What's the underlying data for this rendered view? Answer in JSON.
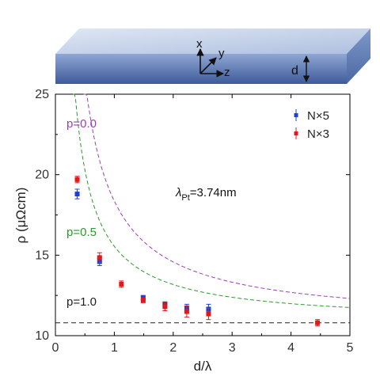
{
  "slab": {
    "x_label": "x",
    "y_label": "y",
    "z_label": "z",
    "d_label": "d"
  },
  "chart_data": {
    "type": "scatter",
    "xlabel": "d/λ",
    "ylabel": "ρ (μΩcm)",
    "xlim": [
      0,
      5
    ],
    "ylim": [
      10,
      25
    ],
    "xticks": [
      "0",
      "1",
      "2",
      "3",
      "4",
      "5"
    ],
    "yticks": [
      "10",
      "15",
      "20",
      "25"
    ],
    "grid": false,
    "legend_position": "top-right",
    "annotation": {
      "lambda_label": "λ",
      "lambda_sub": "Pt",
      "lambda_value": "=3.74nm"
    },
    "series": [
      {
        "name": "N×5",
        "color": "#1f3fd6",
        "marker": "square",
        "x": [
          0.37,
          0.75,
          1.49,
          1.86,
          2.23,
          2.6
        ],
        "y": [
          18.8,
          14.6,
          12.35,
          11.95,
          11.7,
          11.65
        ],
        "err": [
          0.3,
          0.25,
          0.15,
          0.15,
          0.25,
          0.3
        ]
      },
      {
        "name": "N×3",
        "color": "#e0191b",
        "marker": "square",
        "x": [
          0.37,
          0.75,
          1.12,
          1.49,
          1.86,
          2.23,
          2.6,
          4.45
        ],
        "y": [
          19.7,
          14.85,
          13.2,
          12.2,
          11.8,
          11.5,
          11.35,
          10.8
        ],
        "err": [
          0.2,
          0.3,
          0.2,
          0.15,
          0.25,
          0.35,
          0.35,
          0.2
        ]
      }
    ],
    "curves": [
      {
        "label": "p=0.0",
        "color": "#9b3fb5",
        "style": "dashed"
      },
      {
        "label": "p=0.5",
        "color": "#2a9a2a",
        "style": "dashed"
      },
      {
        "label": "p=1.0",
        "color": "#222222",
        "style": "dashed",
        "value": 10.8
      }
    ]
  }
}
